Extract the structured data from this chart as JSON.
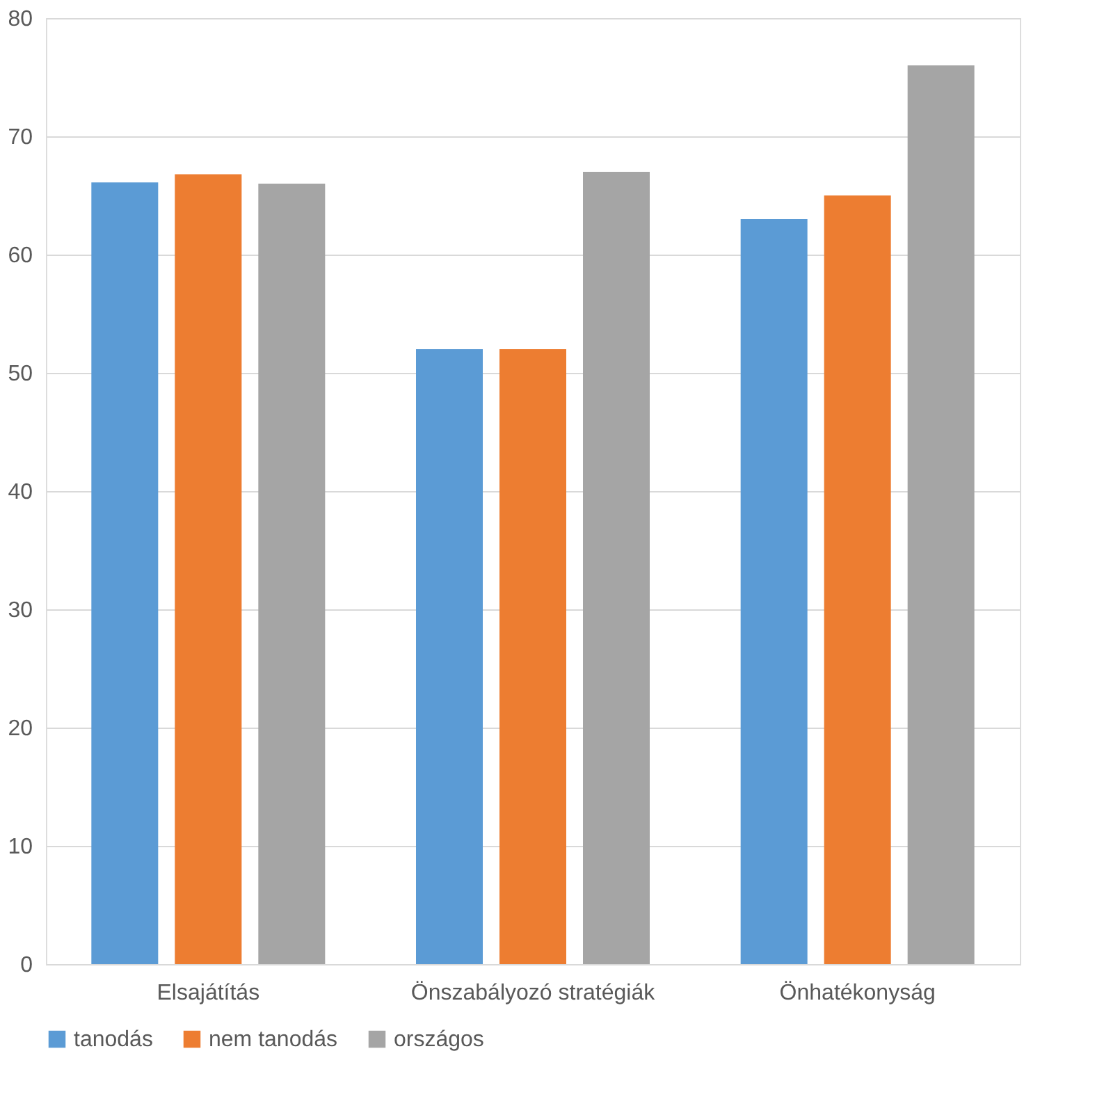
{
  "chart_data": {
    "type": "bar",
    "categories": [
      "Elsajátítás",
      "Önszabályozó stratégiák",
      "Önhatékonyság"
    ],
    "series": [
      {
        "name": "tanodás",
        "color": "#5b9bd5",
        "values": [
          66.1,
          52,
          63
        ]
      },
      {
        "name": "nem tanodás",
        "color": "#ed7d31",
        "values": [
          66.8,
          52,
          65
        ]
      },
      {
        "name": "országos",
        "color": "#a5a5a5",
        "values": [
          66,
          67,
          76
        ]
      }
    ],
    "ylim": [
      0,
      80
    ],
    "yticks": [
      0,
      10,
      20,
      30,
      40,
      50,
      60,
      70,
      80
    ],
    "grid": "y",
    "legend": "bottom"
  }
}
